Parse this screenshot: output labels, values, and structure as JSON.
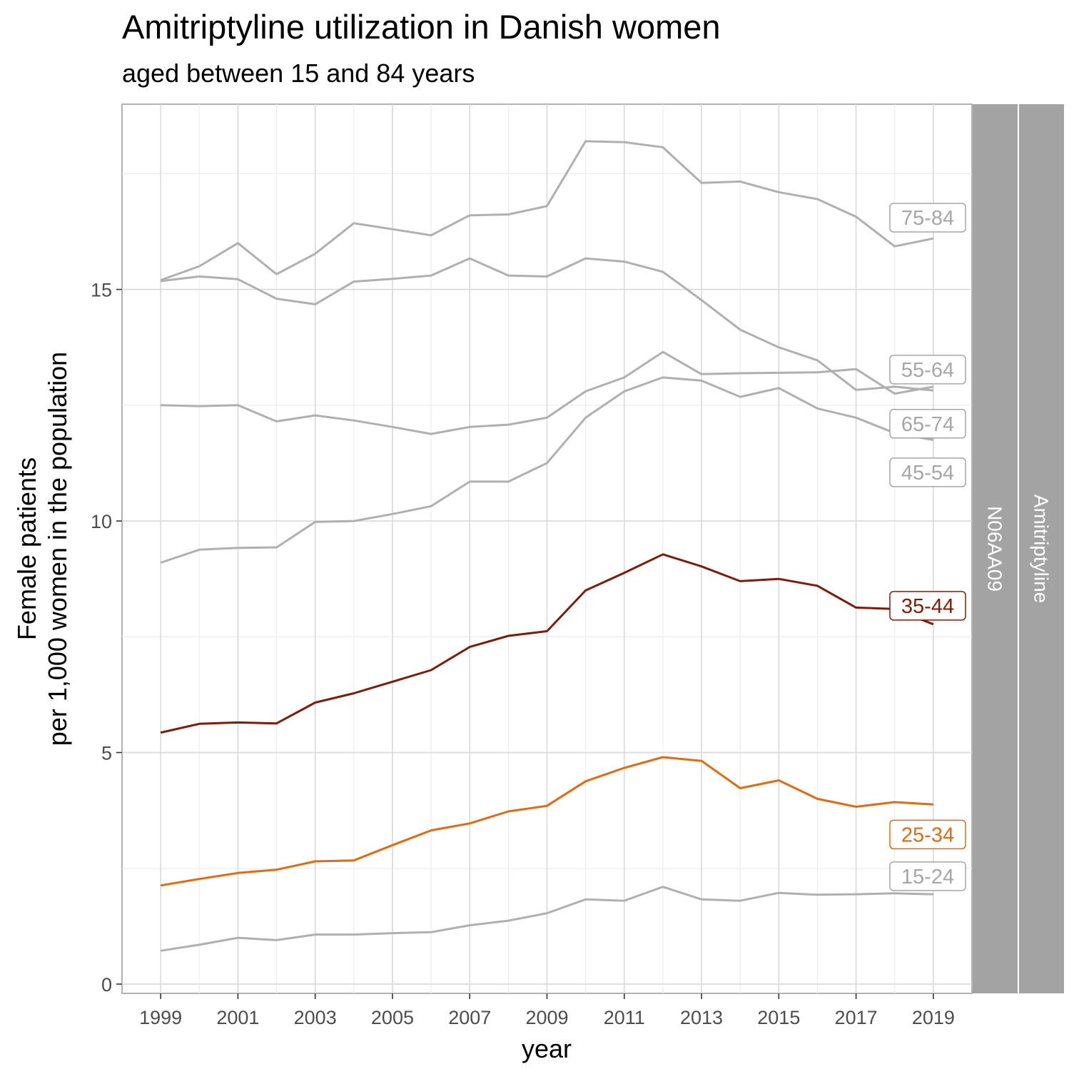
{
  "title": "Amitriptyline utilization in Danish women",
  "subtitle": "aged between 15 and 84 years",
  "chart_data": {
    "type": "line",
    "title": "Amitriptyline utilization in Danish women",
    "subtitle": "aged between 15 and 84 years",
    "xlabel": "year",
    "ylabel_line1": "Female patients",
    "ylabel_line2": "per 1,000 women in the population",
    "xlim": [
      1998.0,
      2020.0
    ],
    "ylim": [
      -0.2,
      19.0
    ],
    "x_ticks": [
      1999,
      2001,
      2003,
      2005,
      2007,
      2009,
      2011,
      2013,
      2015,
      2017,
      2019
    ],
    "y_ticks": [
      0,
      5,
      10,
      15
    ],
    "grid": true,
    "strips": [
      "N06AA09",
      "Amitriptyline"
    ],
    "x": [
      1999,
      2000,
      2001,
      2002,
      2003,
      2004,
      2005,
      2006,
      2007,
      2008,
      2009,
      2010,
      2011,
      2012,
      2013,
      2014,
      2015,
      2016,
      2017,
      2018,
      2019
    ],
    "series": [
      {
        "name": "75-84",
        "color": "#b0b0b0",
        "label_color": "#a6a6a6",
        "label_y": 16.55,
        "values": [
          15.2,
          15.5,
          16.0,
          15.33,
          15.77,
          16.43,
          16.3,
          16.17,
          16.6,
          16.62,
          16.8,
          18.2,
          18.18,
          18.07,
          17.3,
          17.33,
          17.1,
          16.95,
          16.57,
          15.93,
          16.1
        ]
      },
      {
        "name": "65-74",
        "color": "#b0b0b0",
        "label_color": "#a6a6a6",
        "label_y": 12.1,
        "values": [
          15.18,
          15.28,
          15.22,
          14.8,
          14.68,
          15.17,
          15.23,
          15.3,
          15.67,
          15.3,
          15.28,
          15.67,
          15.6,
          15.38,
          14.77,
          14.13,
          13.75,
          13.47,
          12.83,
          12.9,
          12.82
        ]
      },
      {
        "name": "55-64",
        "color": "#b0b0b0",
        "label_color": "#a6a6a6",
        "label_y": 13.27,
        "values": [
          12.5,
          12.48,
          12.5,
          12.15,
          12.28,
          12.17,
          12.03,
          11.88,
          12.03,
          12.08,
          12.23,
          12.8,
          13.1,
          13.65,
          13.17,
          13.19,
          13.2,
          13.21,
          13.28,
          12.75,
          12.9
        ]
      },
      {
        "name": "45-54",
        "color": "#b0b0b0",
        "label_color": "#a6a6a6",
        "label_y": 11.05,
        "values": [
          9.1,
          9.38,
          9.42,
          9.43,
          9.98,
          10.0,
          10.15,
          10.32,
          10.85,
          10.85,
          11.25,
          12.23,
          12.8,
          13.1,
          13.03,
          12.68,
          12.87,
          12.43,
          12.23,
          11.9,
          11.75
        ]
      },
      {
        "name": "35-44",
        "color": "#7e1c0a",
        "label_color": "#7e1c0a",
        "label_y": 8.17,
        "values": [
          5.43,
          5.62,
          5.65,
          5.63,
          6.08,
          6.28,
          6.53,
          6.78,
          7.28,
          7.52,
          7.62,
          8.5,
          8.88,
          9.28,
          9.02,
          8.7,
          8.75,
          8.6,
          8.13,
          8.1,
          7.77
        ]
      },
      {
        "name": "25-34",
        "color": "#e06b12",
        "label_color": "#e06b12",
        "label_y": 3.23,
        "values": [
          2.13,
          2.27,
          2.4,
          2.47,
          2.65,
          2.67,
          3.0,
          3.32,
          3.47,
          3.73,
          3.85,
          4.38,
          4.67,
          4.9,
          4.82,
          4.23,
          4.4,
          4.0,
          3.83,
          3.93,
          3.88
        ]
      },
      {
        "name": "15-24",
        "color": "#b0b0b0",
        "label_color": "#a6a6a6",
        "label_y": 2.33,
        "values": [
          0.72,
          0.85,
          1.0,
          0.95,
          1.07,
          1.07,
          1.1,
          1.12,
          1.27,
          1.37,
          1.53,
          1.83,
          1.8,
          2.1,
          1.83,
          1.8,
          1.97,
          1.93,
          1.94,
          1.96,
          1.94
        ]
      }
    ]
  }
}
